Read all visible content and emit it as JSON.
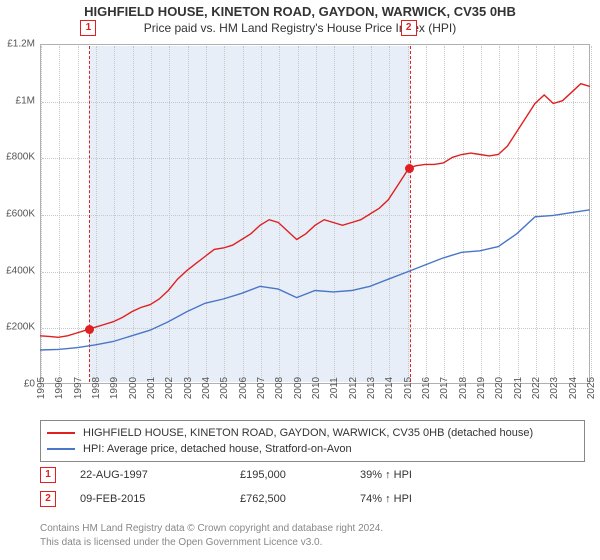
{
  "title": {
    "line1": "HIGHFIELD HOUSE, KINETON ROAD, GAYDON, WARWICK, CV35 0HB",
    "line2": "Price paid vs. HM Land Registry's House Price Index (HPI)",
    "fontsize_line1": 13,
    "fontsize_line2": 12,
    "color": "#333333"
  },
  "chart": {
    "type": "line",
    "background_color": "#ffffff",
    "plot_border_color": "#b0b0b0",
    "grid_color": "#c8c8c8",
    "shade_color": "#e8eef7",
    "shade_range_years": [
      1997.64,
      2015.11
    ],
    "x": {
      "min": 1995,
      "max": 2025,
      "ticks": [
        1995,
        1996,
        1997,
        1998,
        1999,
        2000,
        2001,
        2002,
        2003,
        2004,
        2005,
        2006,
        2007,
        2008,
        2009,
        2010,
        2011,
        2012,
        2013,
        2014,
        2015,
        2016,
        2017,
        2018,
        2019,
        2020,
        2021,
        2022,
        2023,
        2024,
        2025
      ],
      "tick_fontsize": 10,
      "tick_color": "#555555"
    },
    "y": {
      "min": 0,
      "max": 1200000,
      "ticks": [
        0,
        200000,
        400000,
        600000,
        800000,
        1000000,
        1200000
      ],
      "tick_labels": [
        "£0",
        "£200K",
        "£400K",
        "£600K",
        "£800K",
        "£1M",
        "£1.2M"
      ],
      "tick_fontsize": 10,
      "tick_color": "#555555"
    },
    "series": [
      {
        "id": "property",
        "label": "HIGHFIELD HOUSE, KINETON ROAD, GAYDON, WARWICK, CV35 0HB (detached house)",
        "color": "#e02020",
        "line_width": 1.4,
        "points": [
          [
            1995.0,
            170000
          ],
          [
            1995.5,
            168000
          ],
          [
            1996.0,
            165000
          ],
          [
            1996.5,
            170000
          ],
          [
            1997.0,
            180000
          ],
          [
            1997.5,
            190000
          ],
          [
            1997.64,
            195000
          ],
          [
            1998.0,
            200000
          ],
          [
            1998.5,
            210000
          ],
          [
            1999.0,
            220000
          ],
          [
            1999.5,
            235000
          ],
          [
            2000.0,
            255000
          ],
          [
            2000.5,
            270000
          ],
          [
            2001.0,
            280000
          ],
          [
            2001.5,
            300000
          ],
          [
            2002.0,
            330000
          ],
          [
            2002.5,
            370000
          ],
          [
            2003.0,
            400000
          ],
          [
            2003.5,
            425000
          ],
          [
            2004.0,
            450000
          ],
          [
            2004.5,
            475000
          ],
          [
            2005.0,
            480000
          ],
          [
            2005.5,
            490000
          ],
          [
            2006.0,
            510000
          ],
          [
            2006.5,
            530000
          ],
          [
            2007.0,
            560000
          ],
          [
            2007.5,
            580000
          ],
          [
            2008.0,
            570000
          ],
          [
            2008.5,
            540000
          ],
          [
            2009.0,
            510000
          ],
          [
            2009.5,
            530000
          ],
          [
            2010.0,
            560000
          ],
          [
            2010.5,
            580000
          ],
          [
            2011.0,
            570000
          ],
          [
            2011.5,
            560000
          ],
          [
            2012.0,
            570000
          ],
          [
            2012.5,
            580000
          ],
          [
            2013.0,
            600000
          ],
          [
            2013.5,
            620000
          ],
          [
            2014.0,
            650000
          ],
          [
            2014.5,
            700000
          ],
          [
            2015.0,
            750000
          ],
          [
            2015.11,
            762500
          ],
          [
            2015.5,
            770000
          ],
          [
            2016.0,
            775000
          ],
          [
            2016.5,
            775000
          ],
          [
            2017.0,
            780000
          ],
          [
            2017.5,
            800000
          ],
          [
            2018.0,
            810000
          ],
          [
            2018.5,
            815000
          ],
          [
            2019.0,
            810000
          ],
          [
            2019.5,
            805000
          ],
          [
            2020.0,
            810000
          ],
          [
            2020.5,
            840000
          ],
          [
            2021.0,
            890000
          ],
          [
            2021.5,
            940000
          ],
          [
            2022.0,
            990000
          ],
          [
            2022.5,
            1020000
          ],
          [
            2023.0,
            990000
          ],
          [
            2023.5,
            1000000
          ],
          [
            2024.0,
            1030000
          ],
          [
            2024.5,
            1060000
          ],
          [
            2025.0,
            1050000
          ]
        ]
      },
      {
        "id": "hpi",
        "label": "HPI: Average price, detached house, Stratford-on-Avon",
        "color": "#4a76c7",
        "line_width": 1.4,
        "points": [
          [
            1995.0,
            120000
          ],
          [
            1996.0,
            122000
          ],
          [
            1997.0,
            128000
          ],
          [
            1998.0,
            138000
          ],
          [
            1999.0,
            150000
          ],
          [
            2000.0,
            170000
          ],
          [
            2001.0,
            190000
          ],
          [
            2002.0,
            220000
          ],
          [
            2003.0,
            255000
          ],
          [
            2004.0,
            285000
          ],
          [
            2005.0,
            300000
          ],
          [
            2006.0,
            320000
          ],
          [
            2007.0,
            345000
          ],
          [
            2008.0,
            335000
          ],
          [
            2009.0,
            305000
          ],
          [
            2010.0,
            330000
          ],
          [
            2011.0,
            325000
          ],
          [
            2012.0,
            330000
          ],
          [
            2013.0,
            345000
          ],
          [
            2014.0,
            370000
          ],
          [
            2015.0,
            395000
          ],
          [
            2016.0,
            420000
          ],
          [
            2017.0,
            445000
          ],
          [
            2018.0,
            465000
          ],
          [
            2019.0,
            470000
          ],
          [
            2020.0,
            485000
          ],
          [
            2021.0,
            530000
          ],
          [
            2022.0,
            590000
          ],
          [
            2023.0,
            595000
          ],
          [
            2024.0,
            605000
          ],
          [
            2025.0,
            615000
          ]
        ]
      }
    ],
    "sale_markers": [
      {
        "n": "1",
        "year": 1997.64,
        "value": 195000,
        "dash_color": "#e02020",
        "dot_color": "#e02020",
        "box_border": "#e02020"
      },
      {
        "n": "2",
        "year": 2015.11,
        "value": 762500,
        "dash_color": "#e02020",
        "dot_color": "#e02020",
        "box_border": "#e02020"
      }
    ]
  },
  "legend": {
    "border_color": "#888888",
    "fontsize": 11,
    "items": [
      {
        "color": "#e02020",
        "label": "HIGHFIELD HOUSE, KINETON ROAD, GAYDON, WARWICK, CV35 0HB (detached house)"
      },
      {
        "color": "#4a76c7",
        "label": "HPI: Average price, detached house, Stratford-on-Avon"
      }
    ]
  },
  "sales": [
    {
      "n": "1",
      "date": "22-AUG-1997",
      "price": "£195,000",
      "delta_pct": "39%",
      "arrow": "↑",
      "delta_label": "HPI"
    },
    {
      "n": "2",
      "date": "09-FEB-2015",
      "price": "£762,500",
      "delta_pct": "74%",
      "arrow": "↑",
      "delta_label": "HPI"
    }
  ],
  "footer": {
    "line1": "Contains HM Land Registry data © Crown copyright and database right 2024.",
    "line2": "This data is licensed under the Open Government Licence v3.0.",
    "color": "#888888",
    "fontsize": 10
  }
}
